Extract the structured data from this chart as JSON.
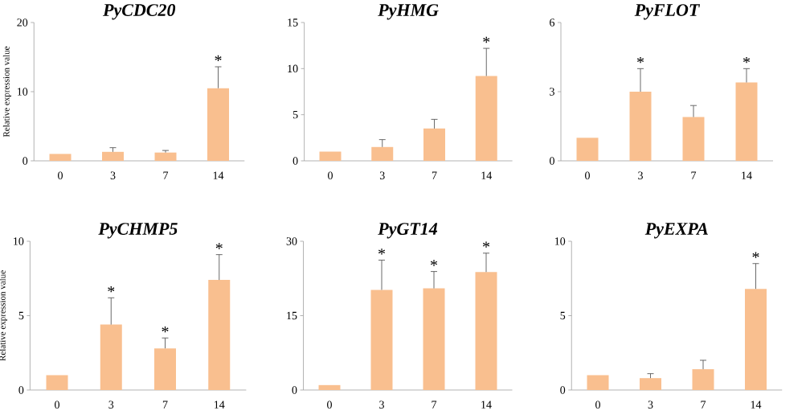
{
  "chart_data": [
    {
      "type": "bar",
      "title": "PyCDC20",
      "ylabel": "Relative expression value",
      "categories": [
        "0",
        "3",
        "7",
        "14"
      ],
      "values": [
        1.0,
        1.3,
        1.2,
        10.5
      ],
      "errors": [
        null,
        [
          1.3,
          1.9
        ],
        [
          1.2,
          1.5
        ],
        [
          10.5,
          13.6
        ]
      ],
      "color": "#f9bf8f",
      "ylim": [
        0,
        20
      ],
      "yticks": [
        0,
        10,
        20
      ],
      "annotations": [
        {
          "text": "*",
          "x": "14",
          "y": 13.6
        }
      ]
    },
    {
      "type": "bar",
      "title": "PyHMG",
      "categories": [
        "0",
        "3",
        "7",
        "14"
      ],
      "values": [
        1.0,
        1.5,
        3.5,
        9.2
      ],
      "errors": [
        null,
        [
          1.5,
          2.3
        ],
        [
          3.5,
          4.5
        ],
        [
          9.2,
          12.2
        ]
      ],
      "color": "#f9bf8f",
      "ylim": [
        0,
        15
      ],
      "yticks": [
        0,
        5,
        10,
        15
      ],
      "annotations": [
        {
          "text": "*",
          "x": "14",
          "y": 12.2
        }
      ]
    },
    {
      "type": "bar",
      "title": "PyFLOT",
      "categories": [
        "0",
        "3",
        "7",
        "14"
      ],
      "values": [
        1.0,
        3.0,
        1.9,
        3.4
      ],
      "errors": [
        null,
        [
          3.0,
          4.0
        ],
        [
          1.9,
          2.4
        ],
        [
          3.4,
          4.0
        ]
      ],
      "color": "#f9bf8f",
      "ylim": [
        0,
        6
      ],
      "yticks": [
        0,
        3,
        6
      ],
      "annotations": [
        {
          "text": "*",
          "x": "3",
          "y": 4.0
        },
        {
          "text": "*",
          "x": "14",
          "y": 4.0
        }
      ]
    },
    {
      "type": "bar",
      "title": "PyCHMP5",
      "ylabel": "Relative expression value",
      "categories": [
        "0",
        "3",
        "7",
        "14"
      ],
      "values": [
        1.0,
        4.4,
        2.8,
        7.4
      ],
      "errors": [
        null,
        [
          4.4,
          6.2
        ],
        [
          2.8,
          3.5
        ],
        [
          7.4,
          9.1
        ]
      ],
      "color": "#f9bf8f",
      "ylim": [
        0,
        10
      ],
      "yticks": [
        0,
        5,
        10
      ],
      "annotations": [
        {
          "text": "*",
          "x": "3",
          "y": 6.2
        },
        {
          "text": "*",
          "x": "7",
          "y": 3.5
        },
        {
          "text": "*",
          "x": "14",
          "y": 9.1
        }
      ]
    },
    {
      "type": "bar",
      "title": "PyGT14",
      "categories": [
        "0",
        "3",
        "7",
        "14"
      ],
      "values": [
        1.0,
        20.2,
        20.5,
        23.8
      ],
      "errors": [
        null,
        [
          20.2,
          26.2
        ],
        [
          20.5,
          23.9
        ],
        [
          23.8,
          27.6
        ]
      ],
      "color": "#f9bf8f",
      "ylim": [
        0,
        30
      ],
      "yticks": [
        0,
        15,
        30
      ],
      "annotations": [
        {
          "text": "*",
          "x": "3",
          "y": 26.2
        },
        {
          "text": "*",
          "x": "7",
          "y": 23.9
        },
        {
          "text": "*",
          "x": "14",
          "y": 27.6
        }
      ]
    },
    {
      "type": "bar",
      "title": "PyEXPA",
      "categories": [
        "0",
        "3",
        "7",
        "14"
      ],
      "values": [
        1.0,
        0.8,
        1.4,
        6.8
      ],
      "errors": [
        null,
        [
          0.8,
          1.1
        ],
        [
          1.4,
          2.0
        ],
        [
          6.8,
          8.5
        ]
      ],
      "color": "#f9bf8f",
      "ylim": [
        0,
        10
      ],
      "yticks": [
        0,
        5,
        10
      ],
      "annotations": [
        {
          "text": "*",
          "x": "14",
          "y": 8.5
        }
      ]
    }
  ]
}
